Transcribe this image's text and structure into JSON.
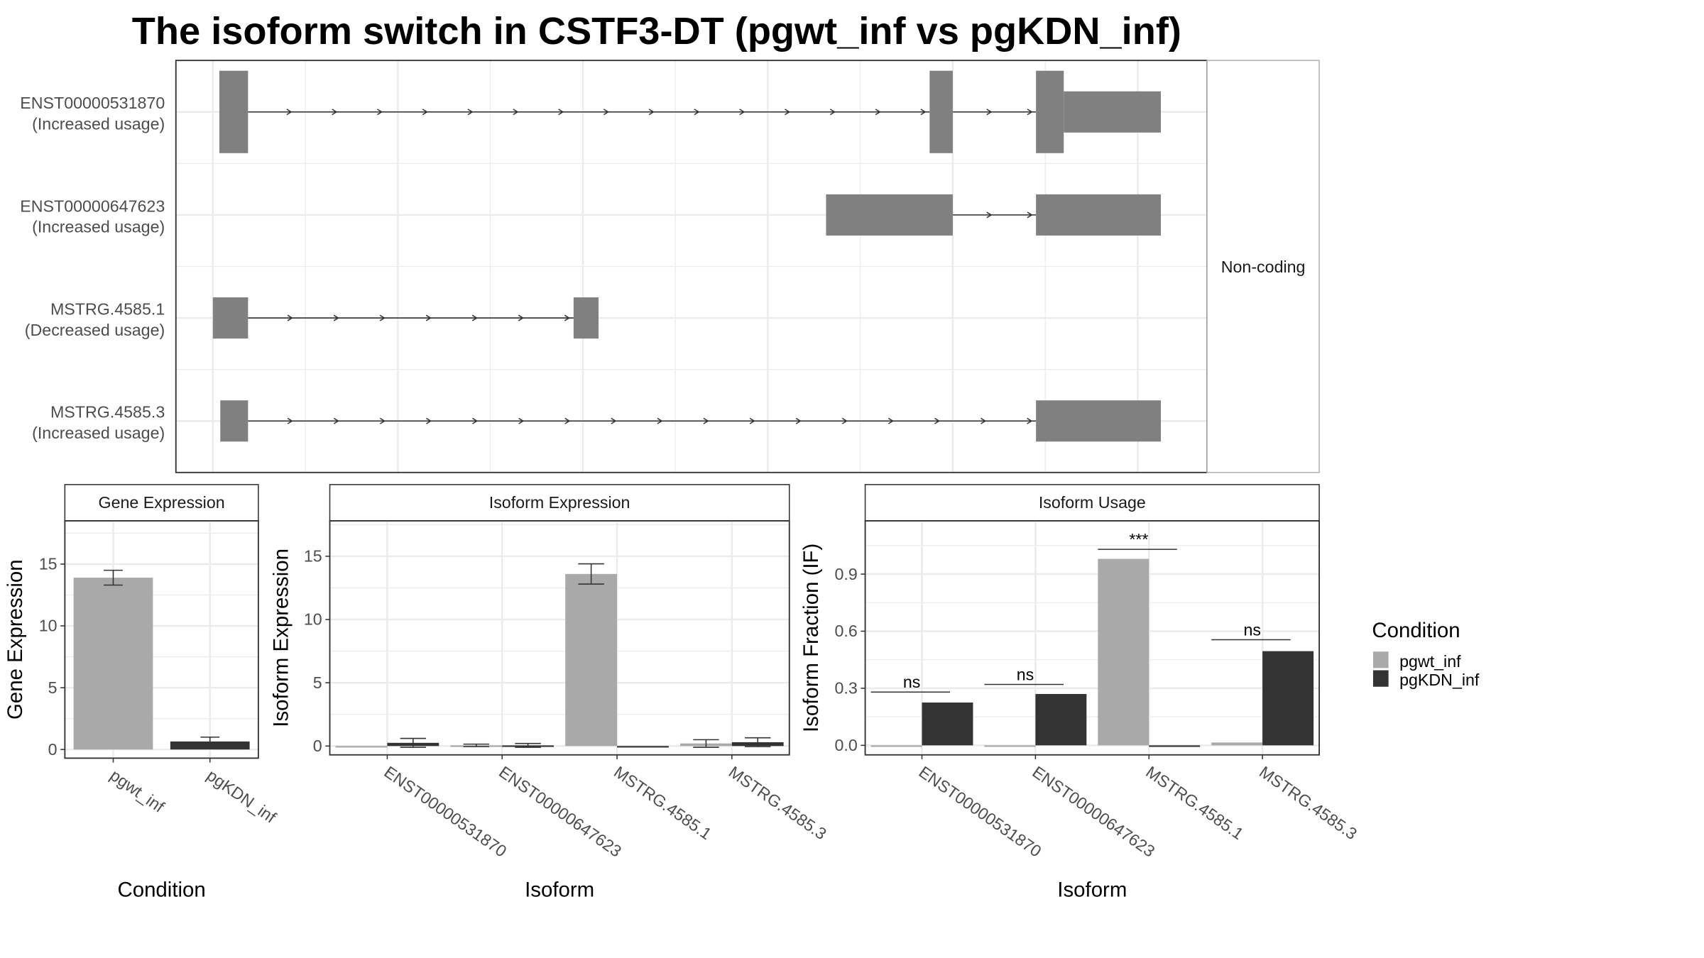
{
  "title": "The isoform switch in CSTF3-DT (pgwt_inf vs pgKDN_inf)",
  "colors": {
    "pgwt_inf": "#a9a9a9",
    "pgKDN_inf": "#333333",
    "exon": "#808080",
    "grid": "#ebebeb",
    "panel_border": "#333333",
    "strip_fill": "#ffffff",
    "strip_border": "#b3b3b3"
  },
  "legend": {
    "title": "Condition",
    "entries": [
      {
        "key": "pgwt_inf",
        "label": "pgwt_inf"
      },
      {
        "key": "pgKDN_inf",
        "label": "pgKDN_inf"
      }
    ]
  },
  "chart_data": [
    {
      "type": "gene-structure",
      "facet_label": "Non-coding",
      "transcripts": [
        {
          "id": "ENST00000531870",
          "usage": "(Increased usage)",
          "exons": [
            {
              "start": 0.07,
              "end": 0.38,
              "size": "thick"
            },
            {
              "start": 7.75,
              "end": 8.0,
              "size": "thick"
            },
            {
              "start": 8.9,
              "end": 9.2,
              "size": "thick"
            },
            {
              "start": 9.2,
              "end": 10.25,
              "size": "thin"
            }
          ]
        },
        {
          "id": "ENST00000647623",
          "usage": "(Increased usage)",
          "exons": [
            {
              "start": 6.63,
              "end": 8.0,
              "size": "thin"
            },
            {
              "start": 8.9,
              "end": 10.25,
              "size": "thin"
            }
          ]
        },
        {
          "id": "MSTRG.4585.1",
          "usage": "(Decreased usage)",
          "exons": [
            {
              "start": 0.0,
              "end": 0.38,
              "size": "thin"
            },
            {
              "start": 3.9,
              "end": 4.17,
              "size": "thin"
            }
          ]
        },
        {
          "id": "MSTRG.4585.3",
          "usage": "(Increased usage)",
          "exons": [
            {
              "start": 0.08,
              "end": 0.38,
              "size": "thin"
            },
            {
              "start": 8.9,
              "end": 10.25,
              "size": "thin"
            }
          ]
        }
      ]
    },
    {
      "type": "bar",
      "strip": "Gene Expression",
      "xlabel": "Condition",
      "ylabel": "Gene Expression",
      "categories": [
        "pgwt_inf",
        "pgKDN_inf"
      ],
      "values": [
        13.9,
        0.65
      ],
      "errors": [
        [
          13.3,
          14.5
        ],
        [
          0.3,
          1.0
        ]
      ],
      "ylim": [
        -0.7,
        18.5
      ],
      "yticks": [
        0,
        5,
        10,
        15
      ],
      "tick_labels": [
        "0",
        "5",
        "10",
        "15"
      ]
    },
    {
      "type": "bar",
      "strip": "Isoform Expression",
      "xlabel": "Isoform",
      "ylabel": "Isoform Expression",
      "categories": [
        "ENST00000531870",
        "ENST00000647623",
        "MSTRG.4585.1",
        "MSTRG.4585.3"
      ],
      "series": [
        {
          "key": "pgwt_inf",
          "values": [
            0.0,
            0.05,
            13.6,
            0.2
          ],
          "errors": [
            [
              0.0,
              0.0
            ],
            [
              -0.05,
              0.15
            ],
            [
              12.8,
              14.4
            ],
            [
              -0.1,
              0.5
            ]
          ]
        },
        {
          "key": "pgKDN_inf",
          "values": [
            0.25,
            0.05,
            0.0,
            0.3
          ],
          "errors": [
            [
              -0.1,
              0.6
            ],
            [
              -0.1,
              0.2
            ],
            [
              0.0,
              0.0
            ],
            [
              -0.05,
              0.65
            ]
          ]
        }
      ],
      "ylim": [
        -0.7,
        17.8
      ],
      "yticks": [
        0,
        5,
        10,
        15
      ],
      "tick_labels": [
        "0",
        "5",
        "10",
        "15"
      ]
    },
    {
      "type": "bar",
      "strip": "Isoform Usage",
      "xlabel": "Isoform",
      "ylabel": "Isoform Fraction (IF)",
      "categories": [
        "ENST00000531870",
        "ENST00000647623",
        "MSTRG.4585.1",
        "MSTRG.4585.3"
      ],
      "series": [
        {
          "key": "pgwt_inf",
          "values": [
            0.0,
            0.0,
            0.98,
            0.015
          ]
        },
        {
          "key": "pgKDN_inf",
          "values": [
            0.225,
            0.27,
            0.0,
            0.495
          ]
        }
      ],
      "significance": [
        {
          "label": "ns",
          "level": 0.28
        },
        {
          "label": "ns",
          "level": 0.32
        },
        {
          "label": "***",
          "level": 1.03
        },
        {
          "label": "ns",
          "level": 0.555
        }
      ],
      "ylim": [
        -0.05,
        1.18
      ],
      "yticks": [
        0,
        0.3,
        0.6,
        0.9
      ],
      "tick_labels": [
        "0.0",
        "0.3",
        "0.6",
        "0.9"
      ]
    }
  ]
}
